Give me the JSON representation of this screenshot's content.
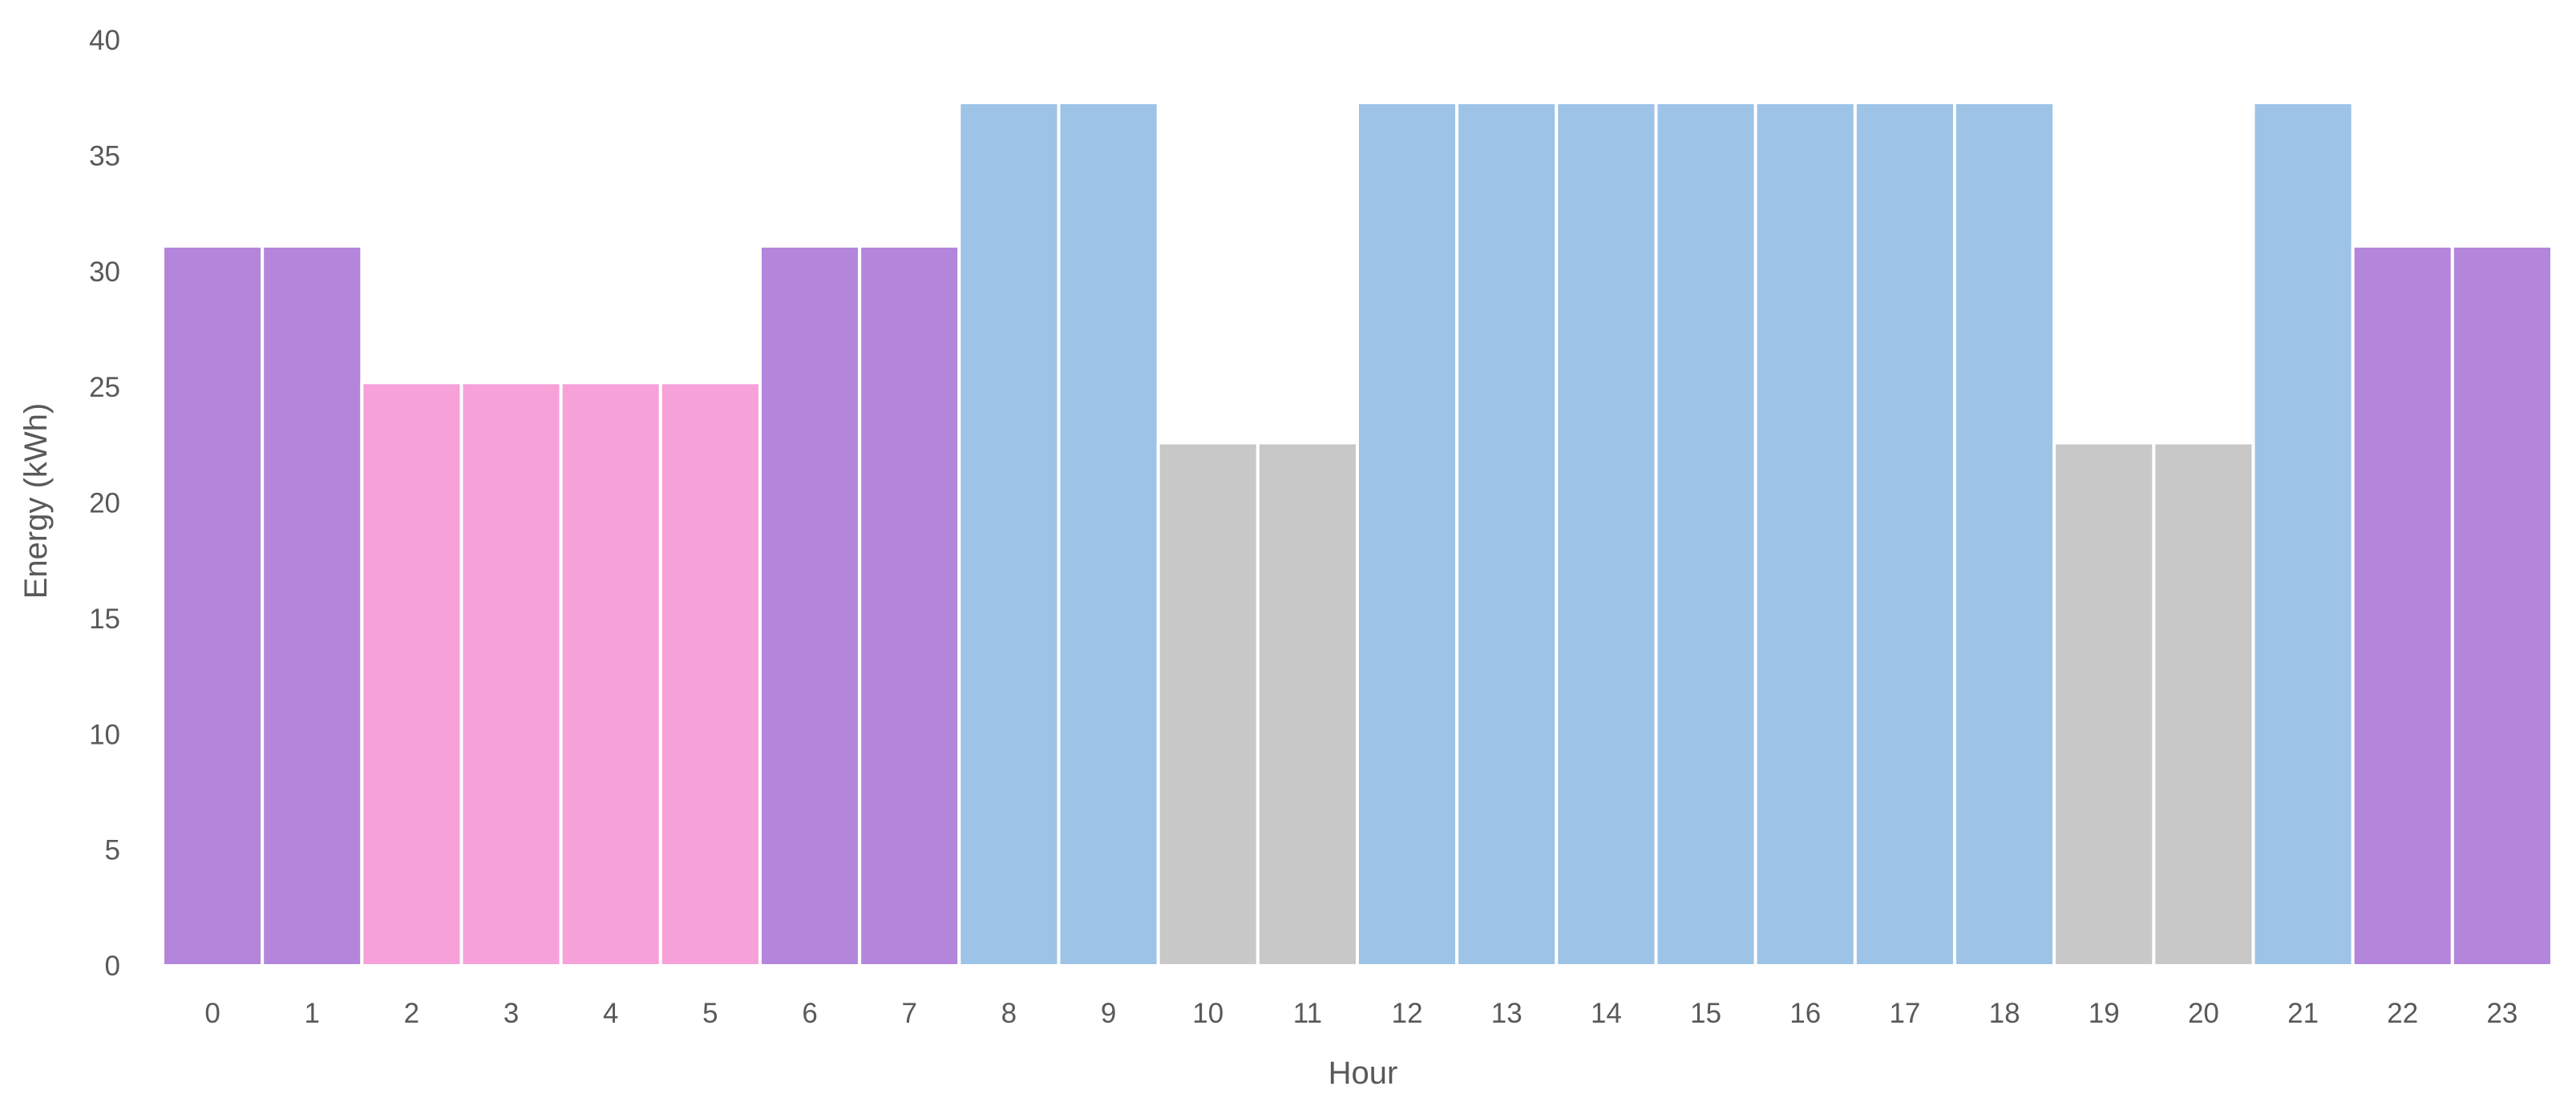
{
  "chart_data": {
    "type": "bar",
    "xlabel": "Hour",
    "ylabel": "Energy (kWh)",
    "ylim": [
      0,
      40
    ],
    "y_ticks": [
      "0",
      "5",
      "10",
      "15",
      "20",
      "25",
      "30",
      "35",
      "40"
    ],
    "grid": false,
    "legend": "none",
    "categories": [
      "0",
      "1",
      "2",
      "3",
      "4",
      "5",
      "6",
      "7",
      "8",
      "9",
      "10",
      "11",
      "12",
      "13",
      "14",
      "15",
      "16",
      "17",
      "18",
      "19",
      "20",
      "21",
      "22",
      "23"
    ],
    "values": [
      31.1,
      31.1,
      25.2,
      25.2,
      25.2,
      25.2,
      31.1,
      31.1,
      37.3,
      37.3,
      22.6,
      22.6,
      37.3,
      37.3,
      37.3,
      37.3,
      37.3,
      37.3,
      37.3,
      22.6,
      22.6,
      37.3,
      31.1,
      31.1
    ],
    "bar_colors": [
      "#b486db",
      "#b486db",
      "#f7a1d9",
      "#f7a1d9",
      "#f7a1d9",
      "#f7a1d9",
      "#b486db",
      "#b486db",
      "#9dc3e6",
      "#9dc3e6",
      "#c8c8c8",
      "#c8c8c8",
      "#9dc3e6",
      "#9dc3e6",
      "#9dc3e6",
      "#9dc3e6",
      "#9dc3e6",
      "#9dc3e6",
      "#9dc3e6",
      "#c8c8c8",
      "#c8c8c8",
      "#9dc3e6",
      "#b486db",
      "#b486db"
    ],
    "bar_gap_color": "#ffffff",
    "text_color": "#595959"
  }
}
